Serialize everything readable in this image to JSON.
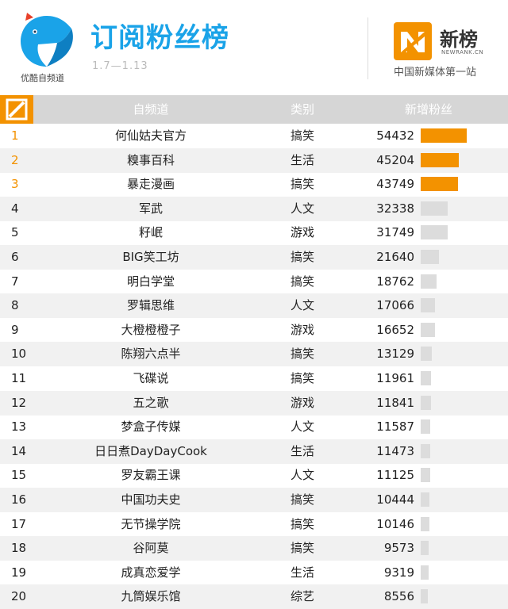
{
  "header": {
    "title": "订阅粉丝榜",
    "date_range": "1.7—1.13",
    "youku_caption": "优酷自频道",
    "newrank_name": "新榜",
    "newrank_en": "NEWRANK.CN",
    "newrank_slogan": "中国新媒体第一站"
  },
  "colors": {
    "title_blue": "#1aa3e8",
    "accent_orange": "#f39200",
    "bar_gray": "#dcdcdc",
    "header_gray": "#d6d6d6"
  },
  "chart_data": {
    "type": "table",
    "columns": [
      "",
      "自频道",
      "类别",
      "新增粉丝"
    ],
    "rows": [
      {
        "rank": "1",
        "name": "何仙姑夫官方",
        "category": "搞笑",
        "fans": 54432
      },
      {
        "rank": "2",
        "name": "糗事百科",
        "category": "生活",
        "fans": 45204
      },
      {
        "rank": "3",
        "name": "暴走漫画",
        "category": "搞笑",
        "fans": 43749
      },
      {
        "rank": "4",
        "name": "军武",
        "category": "人文",
        "fans": 32338
      },
      {
        "rank": "5",
        "name": "籽岷",
        "category": "游戏",
        "fans": 31749
      },
      {
        "rank": "6",
        "name": "BIG笑工坊",
        "category": "搞笑",
        "fans": 21640
      },
      {
        "rank": "7",
        "name": "明白学堂",
        "category": "搞笑",
        "fans": 18762
      },
      {
        "rank": "8",
        "name": "罗辑思维",
        "category": "人文",
        "fans": 17066
      },
      {
        "rank": "9",
        "name": "大橙橙橙子",
        "category": "游戏",
        "fans": 16652
      },
      {
        "rank": "10",
        "name": "陈翔六点半",
        "category": "搞笑",
        "fans": 13129
      },
      {
        "rank": "11",
        "name": "飞碟说",
        "category": "搞笑",
        "fans": 11961
      },
      {
        "rank": "12",
        "name": "五之歌",
        "category": "游戏",
        "fans": 11841
      },
      {
        "rank": "13",
        "name": "梦盒子传媒",
        "category": "人文",
        "fans": 11587
      },
      {
        "rank": "14",
        "name": "日日煮DayDayCook",
        "category": "生活",
        "fans": 11473
      },
      {
        "rank": "15",
        "name": "罗友霸王课",
        "category": "人文",
        "fans": 11125
      },
      {
        "rank": "16",
        "name": "中国功夫史",
        "category": "搞笑",
        "fans": 10444
      },
      {
        "rank": "17",
        "name": "无节操学院",
        "category": "搞笑",
        "fans": 10146
      },
      {
        "rank": "18",
        "name": "谷阿莫",
        "category": "搞笑",
        "fans": 9573
      },
      {
        "rank": "19",
        "name": "成真恋爱学",
        "category": "生活",
        "fans": 9319
      },
      {
        "rank": "20",
        "name": "九筒娱乐馆",
        "category": "综艺",
        "fans": 8556
      }
    ]
  }
}
